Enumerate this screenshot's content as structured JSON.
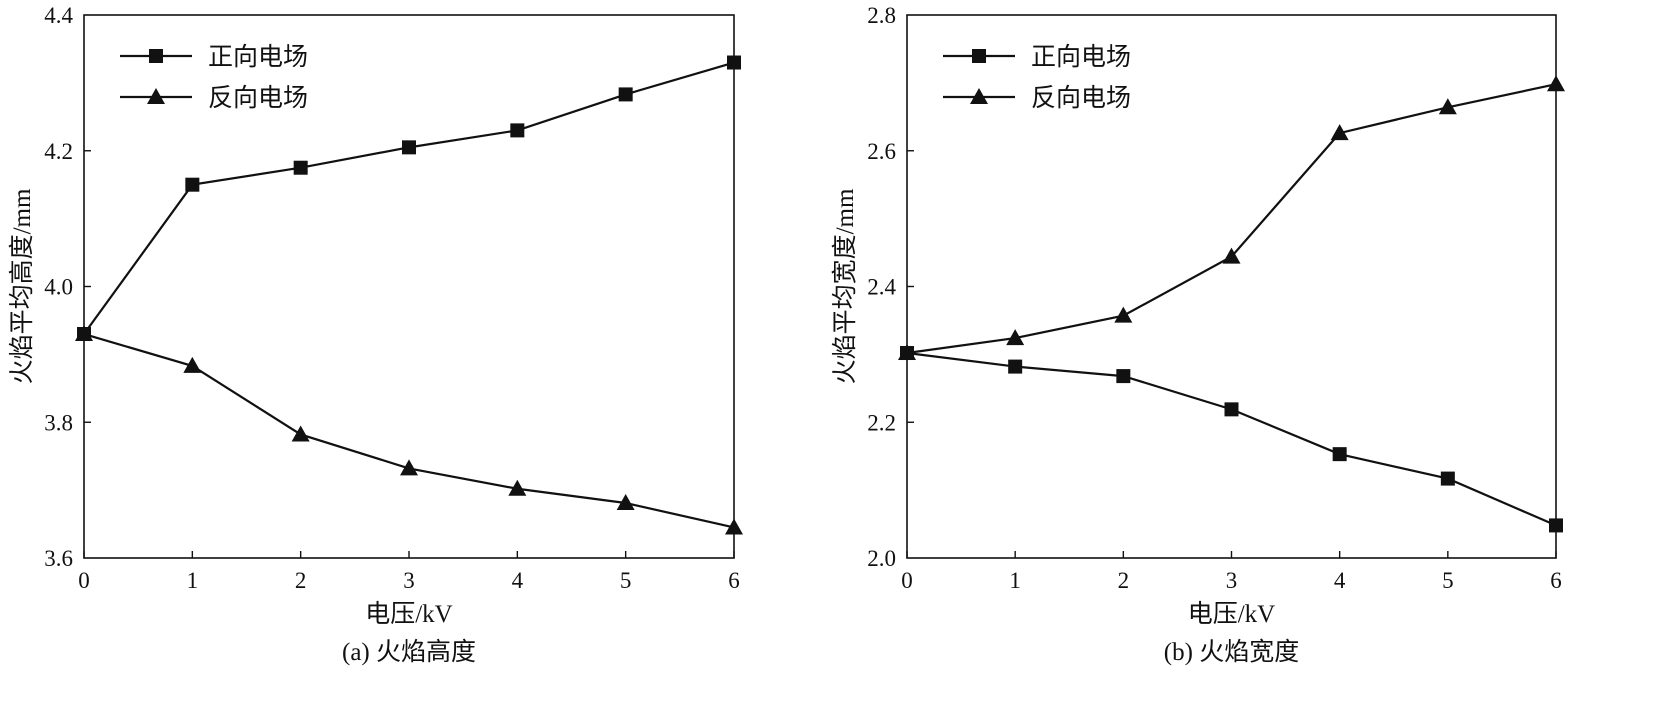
{
  "chart_data": [
    {
      "type": "line",
      "caption": "(a) 火焰高度",
      "xlabel": "电压/kV",
      "ylabel": "火焰平均高度/mm",
      "xlim": [
        0,
        6
      ],
      "ylim": [
        3.6,
        4.4
      ],
      "x_ticks": [
        "0",
        "1",
        "2",
        "3",
        "4",
        "5",
        "6"
      ],
      "y_ticks": [
        "3.6",
        "3.8",
        "4.0",
        "4.2",
        "4.4"
      ],
      "grid": false,
      "legend_position": "top-left",
      "x": [
        0,
        1,
        2,
        3,
        4,
        5,
        6
      ],
      "series": [
        {
          "name": "正向电场",
          "marker": "square",
          "values": [
            3.93,
            4.15,
            4.175,
            4.205,
            4.23,
            4.283,
            4.33
          ]
        },
        {
          "name": "反向电场",
          "marker": "triangle",
          "values": [
            3.93,
            3.883,
            3.782,
            3.732,
            3.702,
            3.681,
            3.645
          ]
        }
      ]
    },
    {
      "type": "line",
      "caption": "(b) 火焰宽度",
      "xlabel": "电压/kV",
      "ylabel": "火焰平均宽度/mm",
      "xlim": [
        0,
        6
      ],
      "ylim": [
        2.0,
        2.8
      ],
      "x_ticks": [
        "0",
        "1",
        "2",
        "3",
        "4",
        "5",
        "6"
      ],
      "y_ticks": [
        "2.0",
        "2.2",
        "2.4",
        "2.6",
        "2.8"
      ],
      "grid": false,
      "legend_position": "top-left",
      "x": [
        0,
        1,
        2,
        3,
        4,
        5,
        6
      ],
      "series": [
        {
          "name": "正向电场",
          "marker": "square",
          "values": [
            2.302,
            2.282,
            2.268,
            2.219,
            2.153,
            2.117,
            2.048
          ]
        },
        {
          "name": "反向电场",
          "marker": "triangle",
          "values": [
            2.302,
            2.324,
            2.357,
            2.444,
            2.626,
            2.664,
            2.698
          ]
        }
      ]
    }
  ]
}
